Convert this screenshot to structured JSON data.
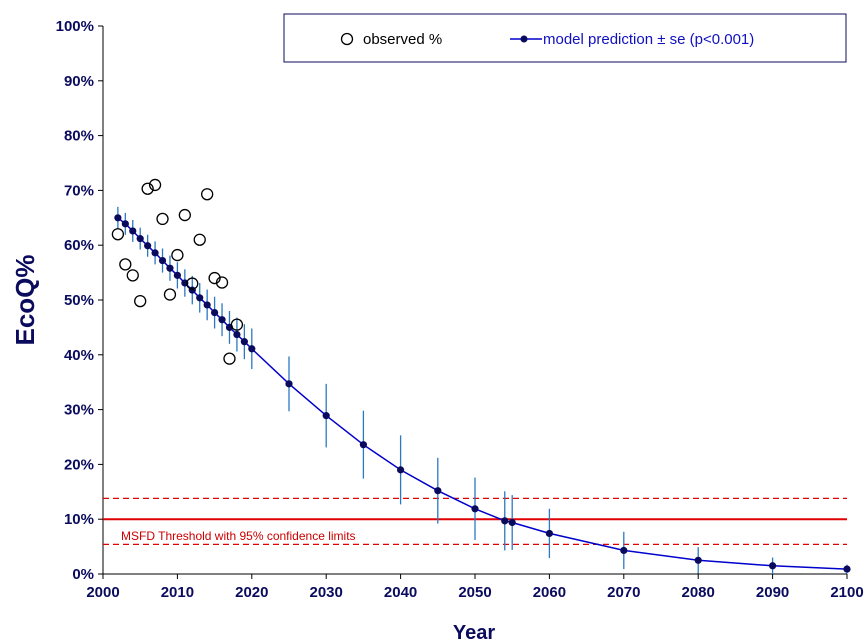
{
  "chart_data": {
    "type": "scatter",
    "xlabel": "Year",
    "ylabel": "EcoQ%",
    "xlim": [
      2000,
      2100
    ],
    "ylim": [
      0,
      100
    ],
    "x_ticks": [
      2000,
      2010,
      2020,
      2030,
      2040,
      2050,
      2060,
      2070,
      2080,
      2090,
      2100
    ],
    "y_ticks": [
      "0%",
      "10%",
      "20%",
      "30%",
      "40%",
      "50%",
      "60%",
      "70%",
      "80%",
      "90%",
      "100%"
    ],
    "legend": {
      "position": "top-right",
      "observed_label": "observed %",
      "model_label": "model prediction ± se (p<0.001)"
    },
    "series": [
      {
        "name": "observed %",
        "kind": "scatter",
        "marker": "open-circle",
        "points": [
          [
            2002,
            62.0
          ],
          [
            2003,
            56.5
          ],
          [
            2004,
            54.5
          ],
          [
            2005,
            49.8
          ],
          [
            2006,
            70.3
          ],
          [
            2007,
            71.0
          ],
          [
            2008,
            64.8
          ],
          [
            2009,
            51.0
          ],
          [
            2010,
            58.2
          ],
          [
            2011,
            65.5
          ],
          [
            2012,
            53.0
          ],
          [
            2013,
            61.0
          ],
          [
            2014,
            69.3
          ],
          [
            2015,
            54.0
          ],
          [
            2016,
            53.2
          ],
          [
            2017,
            39.3
          ],
          [
            2018,
            45.5
          ]
        ]
      },
      {
        "name": "model prediction ± se (p<0.001)",
        "kind": "line-with-errorbars",
        "points": [
          [
            2002,
            65.0,
            2.0
          ],
          [
            2003,
            63.9,
            2.0
          ],
          [
            2004,
            62.6,
            2.0
          ],
          [
            2005,
            61.2,
            2.0
          ],
          [
            2006,
            59.9,
            2.0
          ],
          [
            2007,
            58.6,
            2.1
          ],
          [
            2008,
            57.2,
            2.2
          ],
          [
            2009,
            55.8,
            2.3
          ],
          [
            2010,
            54.5,
            2.4
          ],
          [
            2011,
            53.1,
            2.5
          ],
          [
            2012,
            51.8,
            2.6
          ],
          [
            2013,
            50.4,
            2.7
          ],
          [
            2014,
            49.1,
            2.8
          ],
          [
            2015,
            47.7,
            2.9
          ],
          [
            2016,
            46.4,
            3.0
          ],
          [
            2017,
            45.0,
            3.0
          ],
          [
            2018,
            43.7,
            3.1
          ],
          [
            2019,
            42.4,
            3.2
          ],
          [
            2020,
            41.1,
            3.7
          ],
          [
            2025,
            34.7,
            5.0
          ],
          [
            2030,
            28.9,
            5.8
          ],
          [
            2035,
            23.6,
            6.2
          ],
          [
            2040,
            19.0,
            6.3
          ],
          [
            2045,
            15.2,
            6.0
          ],
          [
            2050,
            11.9,
            5.7
          ],
          [
            2054,
            9.7,
            5.4
          ],
          [
            2055,
            9.4,
            5.0
          ],
          [
            2060,
            7.4,
            4.5
          ],
          [
            2070,
            4.3,
            3.4
          ],
          [
            2080,
            2.5,
            2.4
          ],
          [
            2090,
            1.5,
            1.5
          ],
          [
            2100,
            0.9,
            0.8
          ]
        ]
      }
    ],
    "threshold": {
      "label": "MSFD Threshold with 95% confidence limits",
      "value": 10,
      "lower": 5.4,
      "upper": 13.8
    },
    "colors": {
      "axis_text": "#0b0b5e",
      "model_line": "#0000cc",
      "model_marker": "#0b0b5e",
      "error_bar": "#2b79c2",
      "threshold": "#e00000",
      "observed": "#000000"
    },
    "grid": false
  }
}
